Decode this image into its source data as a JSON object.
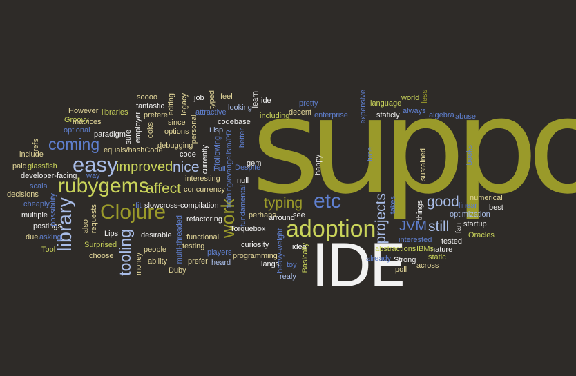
{
  "colors": {
    "background": "#2e2b28",
    "olive": "#9a9a2a",
    "lime": "#c9d35a",
    "blue": "#5f7fce",
    "lightblue": "#a9bde8",
    "white": "#f2f2f2",
    "sand": "#e3d79a"
  },
  "words": [
    "support",
    "IDE",
    "adoption",
    "rubygems",
    "library",
    "easy",
    "Clojure",
    "coming",
    "improved",
    "nice",
    "affect",
    "work",
    "etc",
    "typing",
    "good",
    "tooling",
    "projects",
    "JVM",
    "still",
    "Groovy",
    "However",
    "optional",
    "matrices",
    "include",
    "paid",
    "glassfish",
    "developer-facing",
    "decisions",
    "scala",
    "cheaply",
    "multiple",
    "postings",
    "due",
    "asking",
    "Tool",
    "soooo",
    "fantastic",
    "libraries",
    "prefere",
    "paradigm",
    "equals/hashCode",
    "looks",
    "debugging",
    "code",
    "options",
    "since",
    "editing",
    "legacy",
    "job",
    "typed",
    "personal",
    "feel",
    "attractive",
    "looking",
    "Lisp",
    "codebase",
    "interesting",
    "concurrency",
    "cross-compilation",
    "refactoring",
    "functional",
    "testing",
    "prefer",
    "heard",
    "players",
    "programming",
    "Torquebox",
    "curiosity",
    "langs",
    "see",
    "arround",
    "perhaps",
    "idea",
    "toy",
    "realy",
    "Basically",
    "already",
    "abstractions",
    "Strong",
    "poll",
    "interested",
    "IBMs",
    "nature",
    "tested",
    "startup",
    "Oracles",
    "linear",
    "best",
    "numerical",
    "optimization",
    "fan",
    "across",
    "static",
    "always",
    "algebra",
    "abuse",
    "world",
    "less",
    "language",
    "staticly",
    "enterprise",
    "including",
    "decent",
    "pretty",
    "expensive",
    "learn",
    "ide",
    "happy",
    "gem",
    "null",
    "better",
    "Despite",
    "Full",
    "following",
    "currently",
    "training/evangelism/PR",
    "fundamental",
    "multi-threaded",
    "heavy-weight",
    "Duby",
    "ability",
    "people",
    "money",
    "choose",
    "desirable",
    "Lips",
    "Surprised",
    "also",
    "requests",
    "way",
    "fit",
    "slow",
    "employer",
    "sure",
    "possibility",
    "refs",
    "sustained",
    "books",
    "things",
    "takes",
    "time"
  ]
}
